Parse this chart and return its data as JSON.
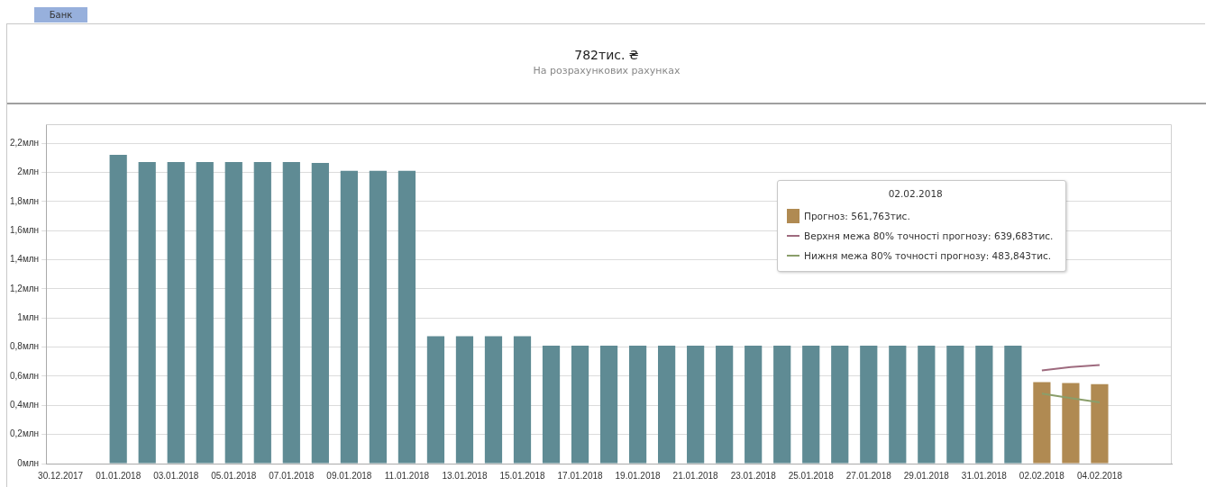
{
  "chart_data": {
    "type": "bar",
    "title": "782тис. ₴",
    "subtitle": "На розрахункових рахунках",
    "categories": [
      "30.12.2017",
      null,
      "01.01.2018",
      null,
      "03.01.2018",
      null,
      "05.01.2018",
      null,
      "07.01.2018",
      null,
      "09.01.2018",
      null,
      "11.01.2018",
      null,
      "13.01.2018",
      null,
      "15.01.2018",
      null,
      "17.01.2018",
      null,
      "19.01.2018",
      null,
      "21.01.2018",
      null,
      "23.01.2018",
      null,
      "25.01.2018",
      null,
      "27.01.2018",
      null,
      "29.01.2018",
      null,
      "31.01.2018",
      null,
      "02.02.2018",
      null,
      "04.02.2018",
      null,
      null
    ],
    "series": [
      {
        "color": "#5f8b94",
        "values": [
          null,
          null,
          2.12,
          2.07,
          2.07,
          2.07,
          2.07,
          2.07,
          2.07,
          2.065,
          2.01,
          2.01,
          2.01,
          0.875,
          0.875,
          0.875,
          0.875,
          0.81,
          0.81,
          0.81,
          0.81,
          0.81,
          0.81,
          0.81,
          0.81,
          0.81,
          0.81,
          0.81,
          0.81,
          0.81,
          0.81,
          0.81,
          0.81,
          0.81,
          null,
          null,
          null,
          null,
          null
        ]
      },
      {
        "color": "#b08a52",
        "values": [
          null,
          null,
          null,
          null,
          null,
          null,
          null,
          null,
          null,
          null,
          null,
          null,
          null,
          null,
          null,
          null,
          null,
          null,
          null,
          null,
          null,
          null,
          null,
          null,
          null,
          null,
          null,
          null,
          null,
          null,
          null,
          null,
          null,
          null,
          0.56,
          0.553,
          0.546,
          null,
          null
        ]
      },
      {
        "type": "line",
        "color": "#9e6a7e",
        "values": [
          null,
          null,
          null,
          null,
          null,
          null,
          null,
          null,
          null,
          null,
          null,
          null,
          null,
          null,
          null,
          null,
          null,
          null,
          null,
          null,
          null,
          null,
          null,
          null,
          null,
          null,
          null,
          null,
          null,
          null,
          null,
          null,
          null,
          null,
          0.64,
          0.663,
          0.676,
          null,
          null
        ]
      },
      {
        "type": "line",
        "color": "#8a9e6a",
        "values": [
          null,
          null,
          null,
          null,
          null,
          null,
          null,
          null,
          null,
          null,
          null,
          null,
          null,
          null,
          null,
          null,
          null,
          null,
          null,
          null,
          null,
          null,
          null,
          null,
          null,
          null,
          null,
          null,
          null,
          null,
          null,
          null,
          null,
          null,
          0.48,
          0.45,
          0.42,
          null,
          null
        ]
      }
    ],
    "ylim": [
      0,
      2.33
    ],
    "yticks": [
      {
        "value": 0,
        "label": "0млн"
      },
      {
        "value": 0.2,
        "label": "0,2млн"
      },
      {
        "value": 0.4,
        "label": "0,4млн"
      },
      {
        "value": 0.6,
        "label": "0,6млн"
      },
      {
        "value": 0.8,
        "label": "0,8млн"
      },
      {
        "value": 1,
        "label": "1млн"
      },
      {
        "value": 1.2,
        "label": "1,2млн"
      },
      {
        "value": 1.4,
        "label": "1,4млн"
      },
      {
        "value": 1.6,
        "label": "1,6млн"
      },
      {
        "value": 1.8,
        "label": "1,8млн"
      },
      {
        "value": 2,
        "label": "2млн"
      },
      {
        "value": 2.2,
        "label": "2,2млн"
      }
    ],
    "grid": "y",
    "marker": "none",
    "line_style": "solid",
    "legend": false,
    "annotations": [
      "Банк",
      "02.02.2018",
      "Прогноз: 561,763тис.",
      "Верхня межа 80% точності прогнозу: 639,683тис.",
      "Нижня межа 80% точності прогнозу: 483,843тис."
    ]
  }
}
